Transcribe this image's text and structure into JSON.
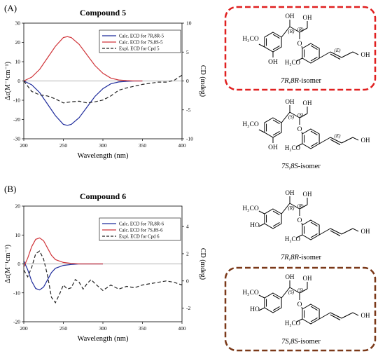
{
  "colors": {
    "calc_rr": "#1f2c9c",
    "calc_ss": "#d0353a",
    "expl": "#222222",
    "box_red": "#e02020",
    "box_brown": "#7a3818"
  },
  "panels": {
    "a": {
      "label": "(A)"
    },
    "b": {
      "label": "(B)"
    }
  },
  "chart_data": [
    {
      "type": "line",
      "title": "Compound 5",
      "xlabel": "Wavelength (nm)",
      "ylabel": "Δε(M⁻¹cm⁻¹)",
      "y2label": "CD (mdeg)",
      "xlim": [
        200,
        400
      ],
      "ylim": [
        -30,
        30
      ],
      "y2lim": [
        -10,
        10
      ],
      "xticks": [
        "200",
        "250",
        "300",
        "350",
        "400"
      ],
      "yticks": [
        "-30",
        "-20",
        "-10",
        "0",
        "10",
        "20",
        "30"
      ],
      "y2ticks": [
        "-10",
        "-5",
        "0",
        "5",
        "10"
      ],
      "grid": false,
      "legend_position": "top-right",
      "series": [
        {
          "name": "Calc. ECD for 7R,8R-5",
          "color_key": "calc_rr",
          "dash": "solid",
          "axis": "left",
          "x": [
            200,
            210,
            220,
            230,
            240,
            250,
            255,
            260,
            270,
            280,
            290,
            300,
            310,
            320,
            330,
            340,
            350
          ],
          "y": [
            0,
            -2,
            -6,
            -12,
            -18,
            -22.5,
            -23,
            -22.5,
            -19,
            -13.5,
            -8,
            -4,
            -1.5,
            -0.5,
            -0.2,
            0,
            0
          ]
        },
        {
          "name": "Calc. ECD for 7S,8S-5",
          "color_key": "calc_ss",
          "dash": "solid",
          "axis": "left",
          "x": [
            200,
            210,
            220,
            230,
            240,
            250,
            255,
            260,
            270,
            280,
            290,
            300,
            310,
            320,
            330,
            340,
            350
          ],
          "y": [
            0,
            2,
            6,
            12,
            18,
            22.5,
            23,
            22.5,
            19,
            13.5,
            8,
            4,
            1.5,
            0.5,
            0.2,
            0,
            0
          ]
        },
        {
          "name": "Expl. ECD for Cpd 5",
          "color_key": "expl",
          "dash": "dashed",
          "axis": "right",
          "x": [
            200,
            210,
            220,
            230,
            240,
            250,
            260,
            270,
            280,
            290,
            300,
            310,
            320,
            330,
            340,
            350,
            360,
            370,
            380,
            390,
            400
          ],
          "y": [
            0,
            -1.8,
            -2.4,
            -2.6,
            -3.1,
            -3.8,
            -3.6,
            -3.5,
            -3.8,
            -3.6,
            -3.3,
            -2.6,
            -1.6,
            -1.2,
            -0.9,
            -0.6,
            -0.4,
            -0.2,
            -0.2,
            0.1,
            1
          ]
        }
      ]
    },
    {
      "type": "line",
      "title": "Compound 6",
      "xlabel": "Wavelength (nm)",
      "ylabel": "Δε(M⁻¹cm⁻¹)",
      "y2label": "CD (mdeg)",
      "xlim": [
        200,
        400
      ],
      "ylim": [
        -20,
        20
      ],
      "y2lim": [
        -3,
        5.5
      ],
      "xticks": [
        "200",
        "250",
        "300",
        "350",
        "400"
      ],
      "yticks": [
        "-20",
        "-10",
        "0",
        "10",
        "20"
      ],
      "y2ticks": [
        "-2",
        "0",
        "2",
        "4"
      ],
      "grid": false,
      "legend_position": "top-right",
      "series": [
        {
          "name": "Calc. ECD for 7R,8R-6",
          "color_key": "calc_rr",
          "dash": "solid",
          "axis": "left",
          "x": [
            200,
            205,
            210,
            215,
            220,
            225,
            230,
            235,
            240,
            250,
            260,
            270,
            300
          ],
          "y": [
            1,
            -2,
            -6,
            -8.5,
            -9,
            -8,
            -5.5,
            -3,
            -1.5,
            -0.5,
            -0.2,
            0,
            0
          ]
        },
        {
          "name": "Calc. ECD for 7S,8S-6",
          "color_key": "calc_ss",
          "dash": "solid",
          "axis": "left",
          "x": [
            200,
            205,
            210,
            215,
            220,
            225,
            230,
            235,
            240,
            250,
            260,
            270,
            300
          ],
          "y": [
            -1,
            2,
            6,
            8.5,
            9,
            8,
            5.5,
            3,
            1.5,
            0.5,
            0.2,
            0,
            0
          ]
        },
        {
          "name": "Expl. ECD for Cpd 6",
          "color_key": "expl",
          "dash": "dashed",
          "axis": "right",
          "x": [
            200,
            205,
            210,
            215,
            220,
            225,
            230,
            235,
            240,
            245,
            250,
            255,
            260,
            265,
            270,
            275,
            280,
            285,
            290,
            300,
            310,
            320,
            330,
            340,
            350,
            360,
            370,
            380,
            390,
            400
          ],
          "y": [
            0.8,
            0.3,
            1.0,
            2.0,
            2.2,
            1.6,
            0.4,
            -1.2,
            -1.6,
            -1.0,
            -0.3,
            -0.6,
            -0.5,
            0.1,
            -0.1,
            -0.6,
            -0.2,
            0.1,
            -0.2,
            -0.7,
            -0.3,
            -0.6,
            -0.4,
            -0.5,
            -0.3,
            -0.2,
            -0.1,
            0.0,
            -0.1,
            -0.3
          ]
        }
      ]
    }
  ],
  "structures": [
    {
      "caption_prefix": "7R,8R",
      "caption_suffix": "-isomer",
      "highlight": "box_red",
      "ring_substituents": [
        "H₃CO",
        "OH"
      ],
      "stereo": [
        "(R)",
        "(R)"
      ],
      "alkene": "(E)",
      "groups": [
        "OH",
        "OH",
        "O",
        "H₃CO",
        "OH"
      ]
    },
    {
      "caption_prefix": "7S,8S",
      "caption_suffix": "-isomer",
      "highlight": "",
      "ring_substituents": [
        "H₃CO",
        "OH"
      ],
      "stereo": [
        "(S)",
        "(S)"
      ],
      "alkene": "(E)",
      "groups": [
        "OH",
        "OH",
        "O",
        "H₃CO",
        "OH"
      ]
    },
    {
      "caption_prefix": "7R,8R",
      "caption_suffix": "-isomer",
      "highlight": "",
      "ring_substituents": [
        "H₃CO",
        "HO"
      ],
      "stereo": [
        "(R)",
        "(R)"
      ],
      "alkene": "",
      "groups": [
        "OH",
        "OH",
        "O",
        "H₃CO",
        "OH"
      ]
    },
    {
      "caption_prefix": "7S,8S",
      "caption_suffix": "-isomer",
      "highlight": "box_brown",
      "ring_substituents": [
        "H₃CO",
        "HO"
      ],
      "stereo": [
        "(S)",
        "(S)"
      ],
      "alkene": "",
      "groups": [
        "OH",
        "OH",
        "O",
        "H₃CO",
        "OH"
      ]
    }
  ]
}
